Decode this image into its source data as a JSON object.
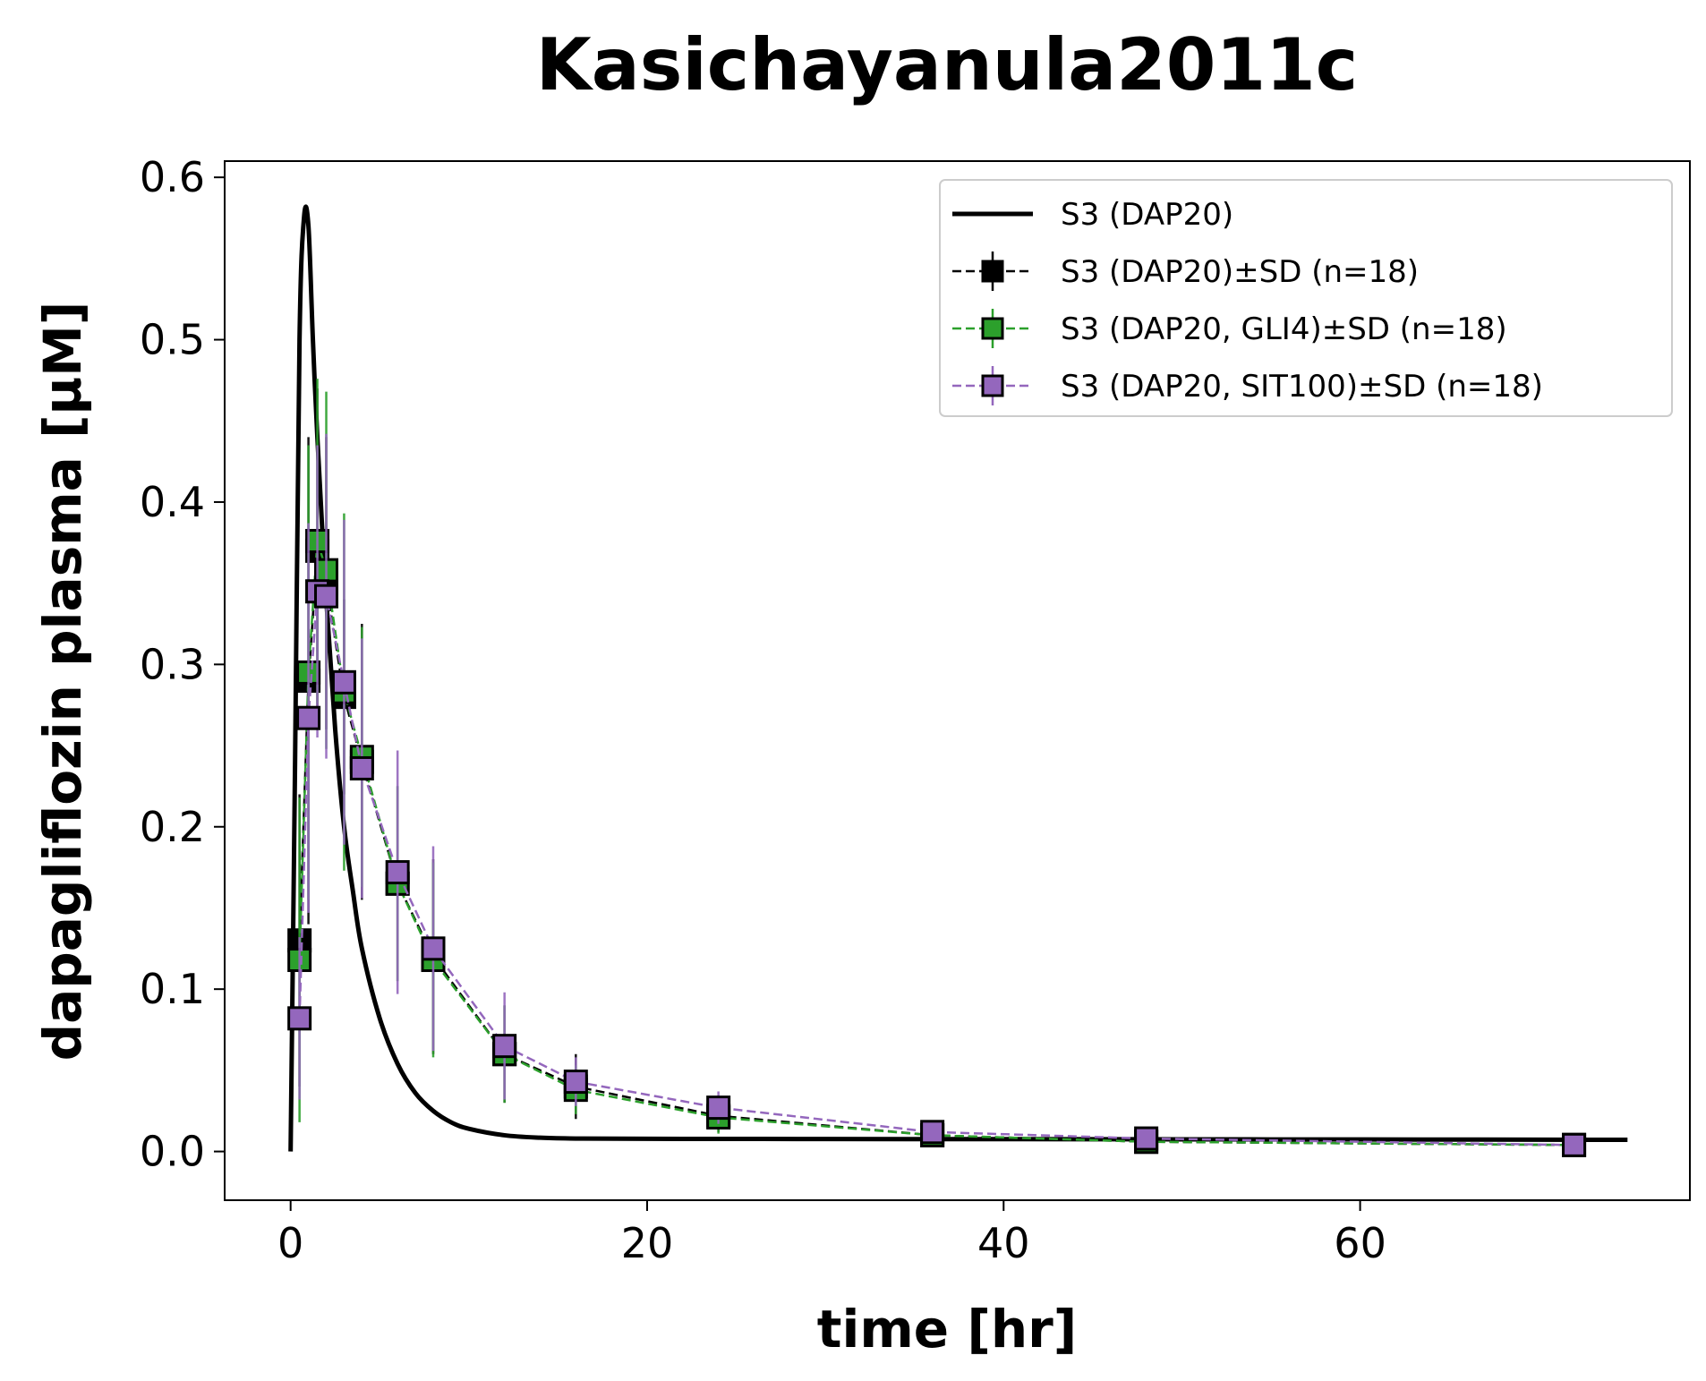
{
  "chart_data": {
    "type": "line",
    "title": "Kasichayanula2011c",
    "xlabel": "time [hr]",
    "ylabel": "dapagliflozin plasma [µM]",
    "xlim": [
      -3.7,
      78.5
    ],
    "ylim": [
      -0.03,
      0.61
    ],
    "x_ticks": [
      0,
      20,
      40,
      60
    ],
    "x_tick_labels": [
      "0",
      "20",
      "40",
      "60"
    ],
    "y_ticks": [
      0.0,
      0.1,
      0.2,
      0.3,
      0.4,
      0.5,
      0.6
    ],
    "y_tick_labels": [
      "0.0",
      "0.1",
      "0.2",
      "0.3",
      "0.4",
      "0.5",
      "0.6"
    ],
    "grid": false,
    "legend_position": "top-right",
    "simulation": {
      "name": "S3 (DAP20)",
      "color": "#000000",
      "x": [
        0,
        0.25,
        0.5,
        0.75,
        1.0,
        1.25,
        1.5,
        2,
        2.5,
        3,
        3.5,
        4,
        5,
        6,
        7,
        8,
        9,
        10,
        12,
        14,
        16,
        20,
        30,
        40,
        50,
        60,
        70,
        75
      ],
      "y": [
        0.0,
        0.24,
        0.5,
        0.575,
        0.57,
        0.5,
        0.44,
        0.34,
        0.26,
        0.2,
        0.16,
        0.125,
        0.082,
        0.054,
        0.036,
        0.025,
        0.018,
        0.014,
        0.01,
        0.0085,
        0.008,
        0.0078,
        0.0077,
        0.0076,
        0.0075,
        0.0074,
        0.0073,
        0.0072
      ]
    },
    "series": [
      {
        "name": "S3 (DAP20)±SD (n=18)",
        "color": "#000000",
        "line_style": "dashed",
        "marker": "square",
        "x": [
          0.5,
          1,
          1.5,
          2,
          3,
          4,
          6,
          8,
          12,
          16,
          24,
          36,
          48,
          72
        ],
        "y": [
          0.13,
          0.29,
          0.37,
          0.35,
          0.28,
          0.24,
          0.165,
          0.12,
          0.06,
          0.04,
          0.022,
          0.01,
          0.006,
          0.004
        ],
        "sd": [
          0.09,
          0.15,
          0.1,
          0.09,
          0.06,
          0.085,
          0.06,
          0.06,
          0.03,
          0.02,
          0.01,
          0.005,
          0.004,
          0.003
        ]
      },
      {
        "name": "S3 (DAP20, GLI4)±SD (n=18)",
        "color": "#2ca02c",
        "line_style": "dashed",
        "marker": "square",
        "x": [
          0.5,
          1,
          1.5,
          2,
          3,
          4,
          6,
          8,
          12,
          16,
          24,
          36,
          48,
          72
        ],
        "y": [
          0.118,
          0.295,
          0.376,
          0.358,
          0.283,
          0.243,
          0.165,
          0.118,
          0.06,
          0.038,
          0.021,
          0.01,
          0.006,
          0.004
        ],
        "sd": [
          0.1,
          0.14,
          0.1,
          0.11,
          0.11,
          0.08,
          0.06,
          0.06,
          0.03,
          0.015,
          0.01,
          0.005,
          0.004,
          0.003
        ]
      },
      {
        "name": "S3 (DAP20, SIT100)±SD (n=18)",
        "color": "#9467bd",
        "line_style": "dashed",
        "marker": "square",
        "x": [
          0.5,
          1,
          1.5,
          2,
          3,
          4,
          6,
          8,
          12,
          16,
          24,
          36,
          48,
          72
        ],
        "y": [
          0.082,
          0.267,
          0.345,
          0.342,
          0.289,
          0.236,
          0.172,
          0.125,
          0.065,
          0.043,
          0.027,
          0.012,
          0.008,
          0.004
        ],
        "sd": [
          0.05,
          0.12,
          0.09,
          0.1,
          0.1,
          0.08,
          0.075,
          0.063,
          0.033,
          0.015,
          0.01,
          0.005,
          0.004,
          0.003
        ]
      }
    ]
  }
}
